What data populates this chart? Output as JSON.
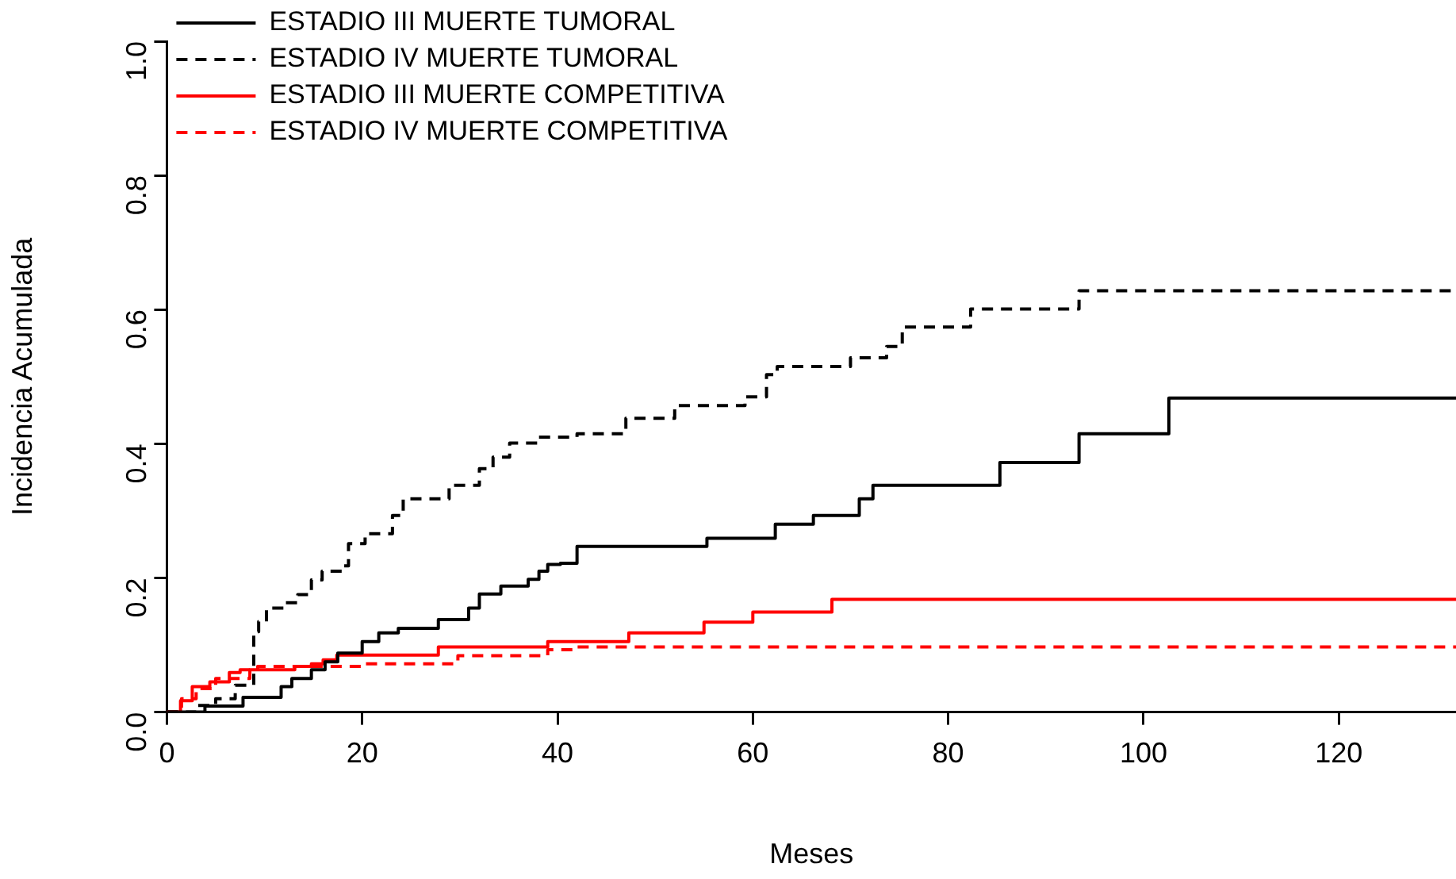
{
  "chart_data": {
    "type": "step",
    "xlabel": "Meses",
    "ylabel": "Incidencia Acumulada",
    "xlim": [
      0,
      132
    ],
    "xticks": [
      0,
      20,
      40,
      60,
      80,
      100,
      120
    ],
    "ylim": [
      0,
      1
    ],
    "yticks": [
      {
        "value": 0,
        "label": "0.0"
      },
      {
        "value": 0.2,
        "label": "0.2"
      },
      {
        "value": 0.4,
        "label": "0.4"
      },
      {
        "value": 0.6,
        "label": "0.6"
      },
      {
        "value": 0.8,
        "label": "0.8"
      },
      {
        "value": 1,
        "label": "1.0"
      }
    ],
    "grid": false,
    "legend": "top left",
    "marker": "none",
    "series": [
      {
        "name": "ESTADIO III MUERTE TUMORAL",
        "color": "#000000",
        "line_style": "solid",
        "x": [
          0,
          3.9,
          7.8,
          11.7,
          12.8,
          14.8,
          16.2,
          17.5,
          20,
          21.7,
          23.7,
          27.8,
          30.9,
          32,
          34.2,
          37,
          38.1,
          39,
          40.3,
          42,
          55.3,
          62.3,
          66.2,
          70.9,
          72.3,
          85.3,
          93.4,
          102.6,
          132
        ],
        "values": [
          0,
          0.009,
          0.022,
          0.038,
          0.05,
          0.063,
          0.075,
          0.088,
          0.105,
          0.118,
          0.125,
          0.138,
          0.155,
          0.176,
          0.188,
          0.198,
          0.21,
          0.22,
          0.222,
          0.247,
          0.259,
          0.28,
          0.293,
          0.318,
          0.338,
          0.372,
          0.415,
          0.468,
          0.468
        ]
      },
      {
        "name": "ESTADIO IV MUERTE TUMORAL",
        "color": "#000000",
        "line_style": "dashed",
        "x": [
          0,
          3,
          5,
          7,
          8.9,
          9.4,
          10.2,
          12.1,
          13.4,
          14.8,
          15.9,
          17.9,
          18.6,
          20.3,
          23.1,
          24.2,
          28.9,
          32,
          33.4,
          35.1,
          38.1,
          42,
          47,
          52,
          59.2,
          61.4,
          62.5,
          70,
          73.7,
          75.3,
          82.3,
          93.4,
          132
        ],
        "values": [
          0,
          0.01,
          0.02,
          0.04,
          0.12,
          0.135,
          0.155,
          0.163,
          0.175,
          0.197,
          0.21,
          0.218,
          0.251,
          0.266,
          0.293,
          0.318,
          0.338,
          0.363,
          0.38,
          0.401,
          0.41,
          0.415,
          0.438,
          0.457,
          0.47,
          0.503,
          0.515,
          0.528,
          0.545,
          0.574,
          0.601,
          0.628,
          0.628
        ]
      },
      {
        "name": "ESTADIO III MUERTE COMPETITIVA",
        "color": "#ff0000",
        "line_style": "solid",
        "x": [
          0,
          1.4,
          2.6,
          4.4,
          6.4,
          7.5,
          13.1,
          14.8,
          16,
          17.4,
          27.8,
          39,
          47.3,
          55,
          60,
          68.1,
          132
        ],
        "values": [
          0,
          0.017,
          0.038,
          0.045,
          0.059,
          0.063,
          0.068,
          0.072,
          0.078,
          0.085,
          0.097,
          0.105,
          0.118,
          0.134,
          0.149,
          0.168,
          0.168
        ]
      },
      {
        "name": "ESTADIO IV MUERTE COMPETITIVA",
        "color": "#ff0000",
        "line_style": "dashed",
        "x": [
          0,
          1.5,
          3,
          5,
          8.5,
          9.3,
          20,
          29.8,
          39,
          42,
          132
        ],
        "values": [
          0,
          0.02,
          0.035,
          0.05,
          0.063,
          0.068,
          0.072,
          0.084,
          0.093,
          0.097,
          0.097
        ]
      }
    ]
  }
}
